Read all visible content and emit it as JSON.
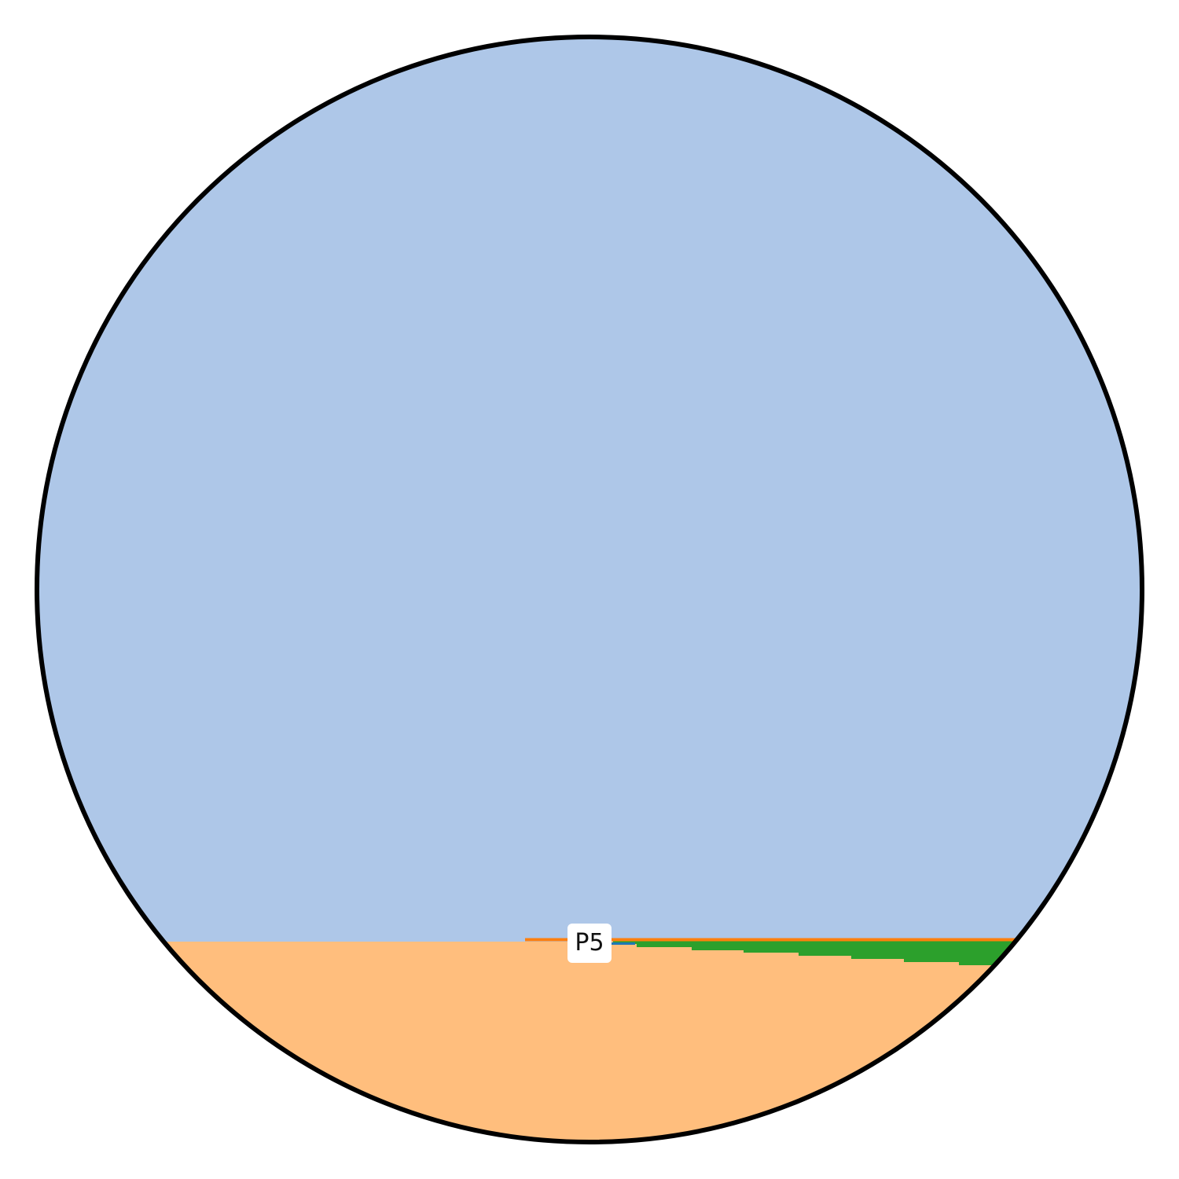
{
  "figure": {
    "label": "P5",
    "colors": {
      "upper_region": "#aec7e8",
      "lower_region": "#ffbe7d",
      "band": "#2ca02c",
      "boundary_line": "#ff7f0e",
      "outline": "#000000",
      "marker_blue": "#1f77b4",
      "badge": "#ffffff"
    }
  }
}
